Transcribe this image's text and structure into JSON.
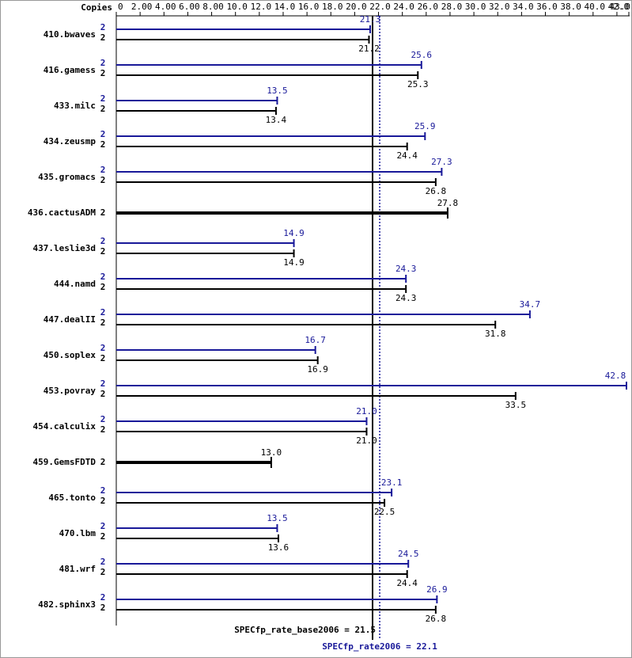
{
  "chart_data": {
    "type": "bar",
    "axis_label": "Copies",
    "categories": [
      "410.bwaves",
      "416.gamess",
      "433.milc",
      "434.zeusmp",
      "435.gromacs",
      "436.cactusADM",
      "437.leslie3d",
      "444.namd",
      "447.dealII",
      "450.soplex",
      "453.povray",
      "454.calculix",
      "459.GemsFDTD",
      "465.tonto",
      "470.lbm",
      "481.wrf",
      "482.sphinx3"
    ],
    "series": [
      {
        "color": "#191999",
        "copies": [
          "2",
          "2",
          "2",
          "2",
          "2",
          null,
          "2",
          "2",
          "2",
          "2",
          "2",
          "2",
          null,
          "2",
          "2",
          "2",
          "2"
        ],
        "values": [
          21.3,
          25.6,
          13.5,
          25.9,
          27.3,
          null,
          14.9,
          24.3,
          34.7,
          16.7,
          42.8,
          21.0,
          null,
          23.1,
          13.5,
          24.5,
          26.9
        ],
        "value_labels": [
          "21.3",
          "25.6",
          "13.5",
          "25.9",
          "27.3",
          null,
          "14.9",
          "24.3",
          "34.7",
          "16.7",
          "42.8",
          "21.0",
          null,
          "23.1",
          "13.5",
          "24.5",
          "26.9"
        ]
      },
      {
        "color": "#000000",
        "copies": [
          "2",
          "2",
          "2",
          "2",
          "2",
          "2",
          "2",
          "2",
          "2",
          "2",
          "2",
          "2",
          "2",
          "2",
          "2",
          "2",
          "2"
        ],
        "values": [
          21.2,
          25.3,
          13.4,
          24.4,
          26.8,
          27.8,
          14.9,
          24.3,
          31.8,
          16.9,
          33.5,
          21.0,
          13.0,
          22.5,
          13.6,
          24.4,
          26.8
        ],
        "value_labels": [
          "21.2",
          "25.3",
          "13.4",
          "24.4",
          "26.8",
          "27.8",
          "14.9",
          "24.3",
          "31.8",
          "16.9",
          "33.5",
          "21.0",
          "13.0",
          "22.5",
          "13.6",
          "24.4",
          "26.8"
        ]
      }
    ],
    "xlim": [
      0,
      43
    ],
    "xticks": [
      0,
      {
        "value": 2,
        "label": "2.00"
      },
      {
        "value": 4,
        "label": "4.00"
      },
      {
        "value": 6,
        "label": "6.00"
      },
      {
        "value": 8,
        "label": "8.00"
      },
      {
        "value": 10,
        "label": "10.0"
      },
      {
        "value": 12,
        "label": "12.0"
      },
      {
        "value": 14,
        "label": "14.0"
      },
      {
        "value": 16,
        "label": "16.0"
      },
      {
        "value": 18,
        "label": "18.0"
      },
      {
        "value": 20,
        "label": "20.0"
      },
      {
        "value": 22,
        "label": "22.0"
      },
      {
        "value": 24,
        "label": "24.0"
      },
      {
        "value": 26,
        "label": "26.0"
      },
      {
        "value": 28,
        "label": "28.0"
      },
      {
        "value": 30,
        "label": "30.0"
      },
      {
        "value": 32,
        "label": "32.0"
      },
      {
        "value": 34,
        "label": "34.0"
      },
      {
        "value": 36,
        "label": "36.0"
      },
      {
        "value": 38,
        "label": "38.0"
      },
      {
        "value": 40,
        "label": "40.0"
      },
      {
        "value": 42,
        "label": "42.0"
      },
      {
        "value": 43,
        "label": "43.0"
      }
    ],
    "reference_lines": [
      {
        "label": "SPECfp_rate_base2006 = 21.5",
        "value": 21.5,
        "color": "#000000"
      },
      {
        "label": "SPECfp_rate2006 = 22.1",
        "value": 22.1,
        "color": "#191999"
      }
    ]
  }
}
